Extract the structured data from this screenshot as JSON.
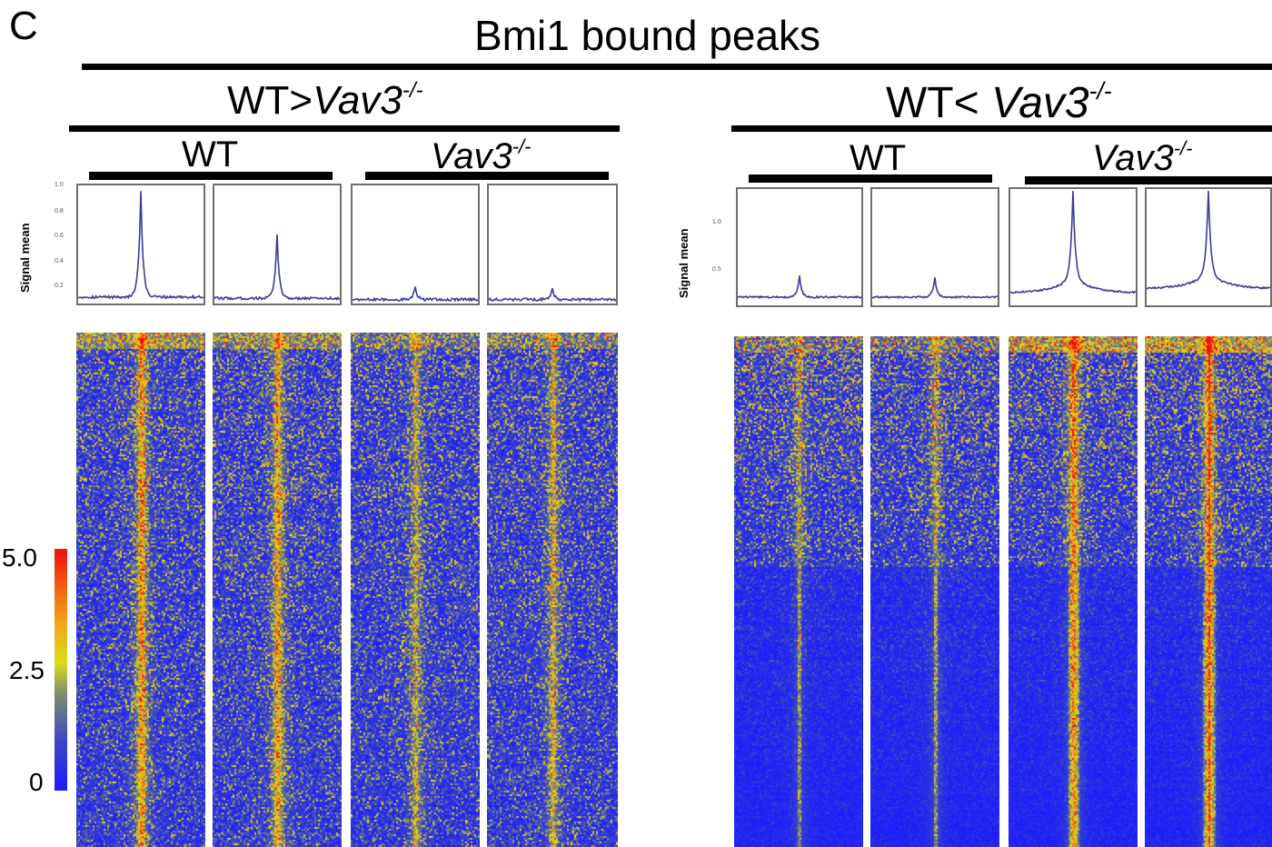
{
  "panel_letter": "C",
  "title": "Bmi1 bound peaks",
  "groups": [
    {
      "label": "WT>",
      "label_italic": "Vav3",
      "label_sup": "-/-"
    },
    {
      "label": "WT< ",
      "label_italic": "Vav3",
      "label_sup": "-/-"
    }
  ],
  "subgroups": {
    "wt": "WT",
    "ko_italic": "Vav3",
    "ko_sup": "-/-"
  },
  "ylabel": "Signal mean",
  "left_ticks": [
    "1.0",
    "0.8",
    "0.6",
    "0.4",
    "0.2"
  ],
  "right_ticks": [
    "1.0",
    "0.5"
  ],
  "colorbar": {
    "max": "5.0",
    "mid": "2.5",
    "min": "0"
  },
  "colors": {
    "low": "#1b1bff",
    "mid": "#dcdc1a",
    "high": "#f01010",
    "profile_line": "#3b3b9a"
  },
  "chart_data": {
    "type": "heatmap",
    "title": "Bmi1 bound peaks",
    "colorbar_range": [
      0,
      5.0
    ],
    "colorbar_ticks": [
      0,
      2.5,
      5.0
    ],
    "profiles": [
      {
        "group": "WT>Vav3-/-",
        "sample": "WT",
        "peak": 0.95,
        "baseline": 0.15
      },
      {
        "group": "WT>Vav3-/-",
        "sample": "WT",
        "peak": 0.62,
        "baseline": 0.14
      },
      {
        "group": "WT>Vav3-/-",
        "sample": "Vav3-/-",
        "peak": 0.22,
        "baseline": 0.13
      },
      {
        "group": "WT>Vav3-/-",
        "sample": "Vav3-/-",
        "peak": 0.21,
        "baseline": 0.13
      },
      {
        "group": "WT<Vav3-/-",
        "sample": "WT",
        "peak": 0.35,
        "baseline": 0.1
      },
      {
        "group": "WT<Vav3-/-",
        "sample": "WT",
        "peak": 0.33,
        "baseline": 0.1
      },
      {
        "group": "WT<Vav3-/-",
        "sample": "Vav3-/-",
        "peak": 1.2,
        "baseline": 0.15
      },
      {
        "group": "WT<Vav3-/-",
        "sample": "Vav3-/-",
        "peak": 1.25,
        "baseline": 0.2
      }
    ],
    "heatmap_intensity": [
      0.62,
      0.56,
      0.38,
      0.4,
      0.32,
      0.34,
      0.7,
      0.74
    ]
  }
}
